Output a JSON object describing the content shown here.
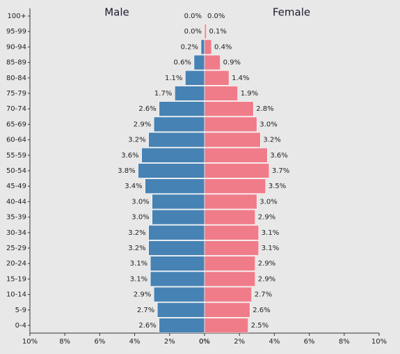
{
  "chart_data": [
    {
      "type": "barh",
      "title": "Male",
      "color": "#4682b4",
      "categories": [
        "100+",
        "95-99",
        "90-94",
        "85-89",
        "80-84",
        "75-79",
        "70-74",
        "65-69",
        "60-64",
        "55-59",
        "50-54",
        "45-49",
        "40-44",
        "35-39",
        "30-34",
        "25-29",
        "20-24",
        "15-19",
        "10-14",
        "5-9",
        "0-4"
      ],
      "values": [
        0.0,
        0.0,
        0.2,
        0.6,
        1.1,
        1.7,
        2.6,
        2.9,
        3.2,
        3.6,
        3.8,
        3.4,
        3.0,
        3.0,
        3.2,
        3.2,
        3.1,
        3.1,
        2.9,
        2.7,
        2.6
      ],
      "value_labels": [
        "0.0%",
        "0.0%",
        "0.2%",
        "0.6%",
        "1.1%",
        "1.7%",
        "2.6%",
        "2.9%",
        "3.2%",
        "3.6%",
        "3.8%",
        "3.4%",
        "3.0%",
        "3.0%",
        "3.2%",
        "3.2%",
        "3.1%",
        "3.1%",
        "2.9%",
        "2.7%",
        "2.6%"
      ],
      "xlim": [
        10,
        0
      ],
      "xticks": [
        {
          "value": 10,
          "label": "10%"
        },
        {
          "value": 8,
          "label": "8%"
        },
        {
          "value": 6,
          "label": "6%"
        },
        {
          "value": 4,
          "label": "4%"
        },
        {
          "value": 2,
          "label": "2%"
        },
        {
          "value": 0,
          "label": "0%"
        }
      ]
    },
    {
      "type": "barh",
      "title": "Female",
      "color": "#f07c89",
      "values": [
        0.0,
        0.1,
        0.4,
        0.9,
        1.4,
        1.9,
        2.8,
        3.0,
        3.2,
        3.6,
        3.7,
        3.5,
        3.0,
        2.9,
        3.1,
        3.1,
        2.9,
        2.9,
        2.7,
        2.6,
        2.5
      ],
      "value_labels": [
        "0.0%",
        "0.1%",
        "0.4%",
        "0.9%",
        "1.4%",
        "1.9%",
        "2.8%",
        "3.0%",
        "3.2%",
        "3.6%",
        "3.7%",
        "3.5%",
        "3.0%",
        "2.9%",
        "3.1%",
        "3.1%",
        "2.9%",
        "2.9%",
        "2.7%",
        "2.6%",
        "2.5%"
      ],
      "xlim": [
        0,
        10
      ],
      "xticks": [
        {
          "value": 0,
          "label": "0%"
        },
        {
          "value": 2,
          "label": "2%"
        },
        {
          "value": 4,
          "label": "4%"
        },
        {
          "value": 6,
          "label": "6%"
        },
        {
          "value": 8,
          "label": "8%"
        },
        {
          "value": 10,
          "label": "10%"
        }
      ]
    }
  ]
}
